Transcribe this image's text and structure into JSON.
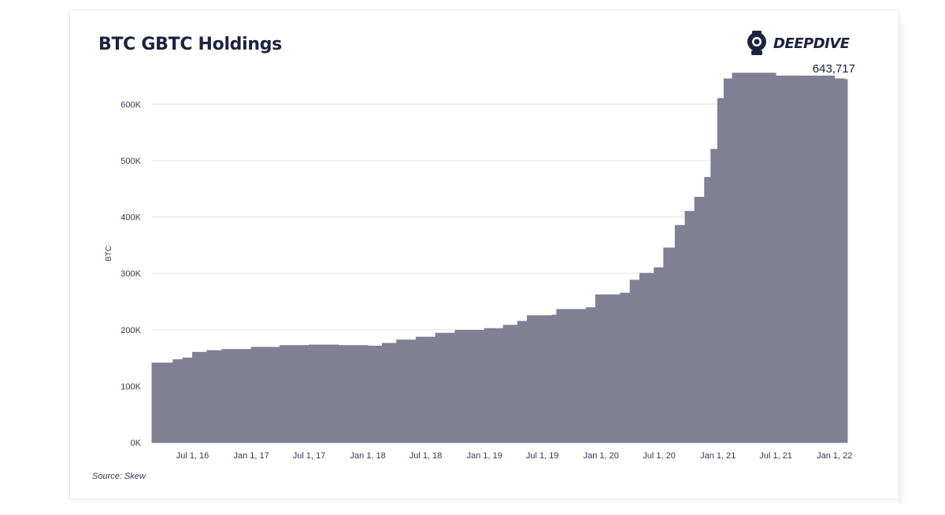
{
  "logo": {
    "text": "DEEPDIVE",
    "icon": "diver-helmet-icon"
  },
  "colors": {
    "area": "#7f8094",
    "title": "#1c2240",
    "grid": "#e6e6ea"
  },
  "chart_data": {
    "type": "area",
    "title": "BTC GBTC Holdings",
    "xlabel": "",
    "ylabel": "BTC",
    "source": "Source: Skew",
    "ylim": [
      0,
      680000
    ],
    "xlim": [
      "2016-02-25",
      "2022-02-10"
    ],
    "y_ticks": [
      {
        "value": 0,
        "label": "0K"
      },
      {
        "value": 100000,
        "label": "100K"
      },
      {
        "value": 200000,
        "label": "200K"
      },
      {
        "value": 300000,
        "label": "300K"
      },
      {
        "value": 400000,
        "label": "400K"
      },
      {
        "value": 500000,
        "label": "500K"
      },
      {
        "value": 600000,
        "label": "600K"
      }
    ],
    "x_ticks": [
      {
        "date": "2016-07-01",
        "label": "Jul 1, 16"
      },
      {
        "date": "2017-01-01",
        "label": "Jan 1, 17"
      },
      {
        "date": "2017-07-01",
        "label": "Jul 1, 17"
      },
      {
        "date": "2018-01-01",
        "label": "Jan 1, 18"
      },
      {
        "date": "2018-07-01",
        "label": "Jul 1, 18"
      },
      {
        "date": "2019-01-01",
        "label": "Jan 1, 19"
      },
      {
        "date": "2019-07-01",
        "label": "Jul 1, 19"
      },
      {
        "date": "2020-01-01",
        "label": "Jan 1, 20"
      },
      {
        "date": "2020-07-01",
        "label": "Jul 1, 20"
      },
      {
        "date": "2021-01-01",
        "label": "Jan 1, 21"
      },
      {
        "date": "2021-07-01",
        "label": "Jul 1, 21"
      },
      {
        "date": "2022-01-01",
        "label": "Jan 1, 22"
      }
    ],
    "annotation": {
      "label": "643,717",
      "value": 643717
    },
    "series": [
      {
        "values": [
          [
            "2016-02-25",
            141000
          ],
          [
            "2016-05-01",
            147000
          ],
          [
            "2016-06-01",
            150000
          ],
          [
            "2016-07-01",
            160000
          ],
          [
            "2016-08-15",
            163000
          ],
          [
            "2016-10-01",
            165000
          ],
          [
            "2017-01-01",
            169000
          ],
          [
            "2017-04-01",
            172000
          ],
          [
            "2017-07-01",
            173000
          ],
          [
            "2017-10-01",
            172000
          ],
          [
            "2018-01-01",
            171000
          ],
          [
            "2018-02-15",
            176000
          ],
          [
            "2018-04-01",
            182000
          ],
          [
            "2018-06-01",
            187000
          ],
          [
            "2018-08-01",
            194000
          ],
          [
            "2018-10-01",
            199000
          ],
          [
            "2019-01-01",
            202000
          ],
          [
            "2019-03-01",
            208000
          ],
          [
            "2019-04-15",
            215000
          ],
          [
            "2019-05-15",
            225000
          ],
          [
            "2019-08-01",
            226000
          ],
          [
            "2019-08-15",
            236000
          ],
          [
            "2019-11-15",
            239000
          ],
          [
            "2019-12-15",
            262000
          ],
          [
            "2020-03-01",
            265000
          ],
          [
            "2020-04-01",
            288000
          ],
          [
            "2020-05-01",
            300000
          ],
          [
            "2020-06-15",
            310000
          ],
          [
            "2020-07-15",
            345000
          ],
          [
            "2020-08-20",
            385000
          ],
          [
            "2020-09-20",
            410000
          ],
          [
            "2020-10-20",
            435000
          ],
          [
            "2020-11-20",
            470000
          ],
          [
            "2020-12-10",
            520000
          ],
          [
            "2020-12-31",
            610000
          ],
          [
            "2021-01-20",
            645000
          ],
          [
            "2021-02-15",
            655000
          ],
          [
            "2021-07-01",
            650000
          ],
          [
            "2022-01-01",
            645000
          ],
          [
            "2022-02-01",
            643717
          ]
        ]
      }
    ],
    "grid": "horizontal",
    "legend": "none"
  }
}
